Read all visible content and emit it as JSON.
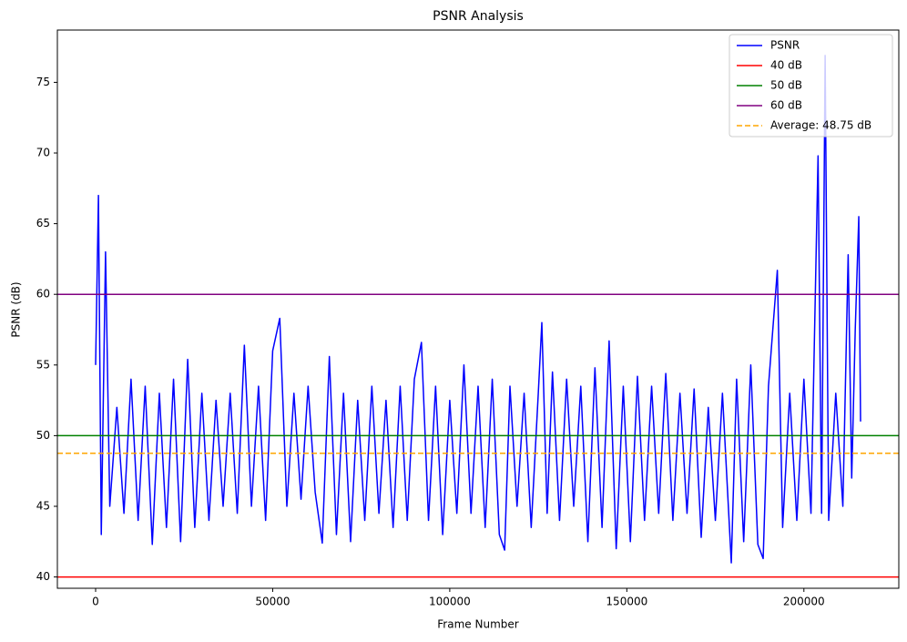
{
  "chart_data": {
    "type": "line",
    "title": "PSNR Analysis",
    "x_label": "Frame Number",
    "y_label": "PSNR (dB)",
    "x": [
      0,
      800,
      1600,
      2800,
      4000,
      6000,
      8000,
      10000,
      12000,
      14000,
      16000,
      18000,
      20000,
      22000,
      24000,
      26000,
      28000,
      30000,
      32000,
      34000,
      36000,
      38000,
      40000,
      42000,
      44000,
      46000,
      48000,
      50000,
      52000,
      54000,
      56000,
      58000,
      60000,
      62000,
      64000,
      66000,
      68000,
      70000,
      72000,
      74000,
      76000,
      78000,
      80000,
      82000,
      84000,
      86000,
      88000,
      90000,
      92000,
      94000,
      96000,
      98000,
      100000,
      102000,
      104000,
      106000,
      108000,
      110000,
      112000,
      114000,
      115500,
      117000,
      119000,
      121000,
      123000,
      125000,
      126000,
      127500,
      129000,
      131000,
      133000,
      135000,
      137000,
      139000,
      141000,
      143000,
      145000,
      147000,
      149000,
      151000,
      153000,
      155000,
      157000,
      159000,
      161000,
      163000,
      165000,
      167000,
      169000,
      171000,
      173000,
      175000,
      177000,
      179500,
      181000,
      183000,
      185000,
      187000,
      188500,
      190000,
      192500,
      194000,
      196000,
      198000,
      200000,
      202000,
      204000,
      205000,
      206000,
      207000,
      209000,
      211000,
      212500,
      213500,
      214500,
      215500,
      216000
    ],
    "series": [
      {
        "name": "PSNR",
        "color": "#0000ff",
        "values": [
          55,
          67,
          43,
          63,
          45,
          52,
          44.5,
          54,
          44,
          53.5,
          42.3,
          53,
          43.5,
          54,
          42.5,
          55.4,
          43.5,
          53,
          44,
          52.5,
          45,
          53,
          44.5,
          56.4,
          45,
          53.5,
          44,
          56,
          58.3,
          45,
          53,
          45.5,
          53.5,
          46,
          42.4,
          55.6,
          43,
          53,
          42.5,
          52.5,
          44,
          53.5,
          44.5,
          52.5,
          43.5,
          53.5,
          44,
          54,
          56.6,
          44,
          53.5,
          43,
          52.5,
          44.5,
          55,
          44.5,
          53.5,
          43.5,
          54,
          43,
          41.9,
          53.5,
          45,
          53,
          43.5,
          53,
          58,
          44.5,
          54.5,
          44,
          54,
          45,
          53.5,
          42.5,
          54.8,
          43.5,
          56.7,
          42,
          53.5,
          42.5,
          54.2,
          44,
          53.5,
          44.5,
          54.4,
          44,
          53,
          44.5,
          53.3,
          42.8,
          52,
          44,
          53,
          41,
          54,
          42.5,
          55,
          42.3,
          41.3,
          53.5,
          61.7,
          43.5,
          53,
          44,
          54,
          44.5,
          69.8,
          44.5,
          76.9,
          44,
          53,
          45,
          62.8,
          47,
          57.5,
          65.5,
          51
        ]
      }
    ],
    "reference_lines": [
      {
        "name": "40 dB",
        "value": 40,
        "color": "#ff0000"
      },
      {
        "name": "50 dB",
        "value": 50,
        "color": "#008000"
      },
      {
        "name": "60 dB",
        "value": 60,
        "color": "#800080"
      },
      {
        "name": "Average: 48.75 dB",
        "value": 48.75,
        "color": "#ffa500",
        "dashed": true
      }
    ],
    "xlim": [
      -10800,
      226800
    ],
    "ylim": [
      39.2,
      78.7
    ],
    "xticks": [
      0,
      50000,
      100000,
      150000,
      200000
    ],
    "yticks": [
      40,
      45,
      50,
      55,
      60,
      65,
      70,
      75
    ],
    "legend": "upper right"
  }
}
